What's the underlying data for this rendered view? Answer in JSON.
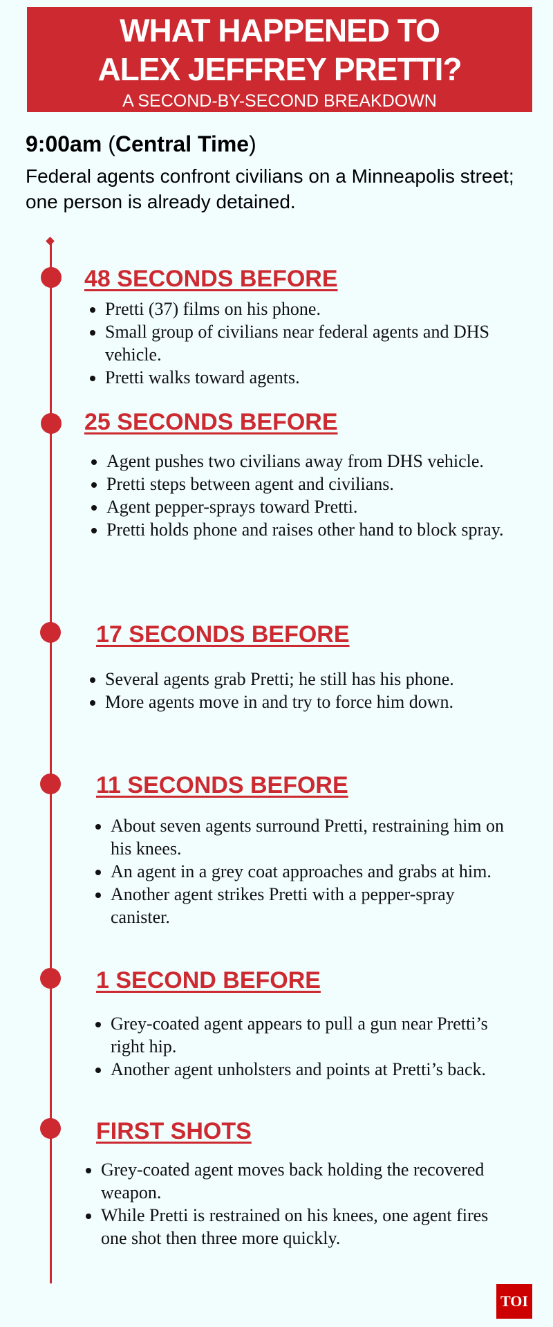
{
  "header": {
    "title_line1": "WHAT HAPPENED TO",
    "title_line2": "ALEX JEFFREY PRETTI?",
    "subtitle": "A SECOND-BY-SECOND BREAKDOWN"
  },
  "intro": {
    "time": "9:00am",
    "zone": "Central Time",
    "description": "Federal agents confront civilians on a Minneapolis street; one person is already detained."
  },
  "timeline": [
    {
      "heading": "48 SECONDS BEFORE",
      "items": [
        "Pretti (37) films on his phone.",
        "Small group of civilians near federal agents and DHS vehicle.",
        "Pretti walks toward agents."
      ]
    },
    {
      "heading": "25 SECONDS BEFORE",
      "items": [
        "Agent pushes two civilians away from DHS vehicle.",
        "Pretti steps between agent and civilians.",
        "Agent pepper-sprays toward Pretti.",
        "Pretti holds phone and raises other hand to block spray."
      ]
    },
    {
      "heading": "17 SECONDS BEFORE",
      "items": [
        "Several agents grab Pretti; he still has his phone.",
        "More agents move in and try to force him down."
      ]
    },
    {
      "heading": "11 SECONDS BEFORE",
      "items": [
        "About seven agents surround Pretti, restraining him on his knees.",
        "An agent in a grey coat approaches and grabs at him.",
        "Another agent strikes Pretti with a pepper-spray canister."
      ]
    },
    {
      "heading": "1 SECOND BEFORE",
      "items": [
        "Grey-coated agent appears to pull a gun near Pretti’s right hip.",
        "Another agent unholsters and points at Pretti’s back."
      ]
    },
    {
      "heading": "FIRST SHOTS",
      "items": [
        "Grey-coated agent moves back holding the recovered weapon.",
        "While Pretti is restrained on his knees, one agent fires one shot then three more quickly."
      ]
    }
  ],
  "logo": {
    "text": "TOI"
  },
  "colors": {
    "accent": "#cc2a30",
    "background": "#f2fdfe"
  }
}
